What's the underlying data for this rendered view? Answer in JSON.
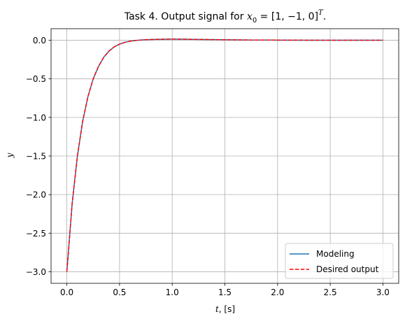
{
  "chart_data": {
    "type": "line",
    "title": {
      "prefix": "Task 4. Output signal for ",
      "var": "x",
      "var_sub": "0",
      "eq": " = [1, −1, 0]",
      "sup": "T",
      "suffix": "."
    },
    "xlabel": {
      "var": "t",
      "rest": ", [s]"
    },
    "ylabel": "y",
    "xlim": [
      -0.15,
      3.15
    ],
    "ylim": [
      -3.15,
      0.15
    ],
    "xticks": [
      0.0,
      0.5,
      1.0,
      1.5,
      2.0,
      2.5,
      3.0
    ],
    "xtick_labels": [
      "0.0",
      "0.5",
      "1.0",
      "1.5",
      "2.0",
      "2.5",
      "3.0"
    ],
    "yticks": [
      0.0,
      -0.5,
      -1.0,
      -1.5,
      -2.0,
      -2.5,
      -3.0
    ],
    "ytick_labels": [
      "0.0",
      "−0.5",
      "−1.0",
      "−1.5",
      "−2.0",
      "−2.5",
      "−3.0"
    ],
    "grid": true,
    "legend_position": "lower-right",
    "x": [
      0.0,
      0.05,
      0.1,
      0.15,
      0.2,
      0.25,
      0.3,
      0.35,
      0.4,
      0.45,
      0.5,
      0.55,
      0.6,
      0.65,
      0.7,
      0.75,
      0.8,
      0.85,
      0.9,
      0.95,
      1.0,
      1.1,
      1.2,
      1.3,
      1.4,
      1.5,
      1.75,
      2.0,
      2.25,
      2.5,
      2.75,
      3.0
    ],
    "series": [
      {
        "name": "Modeling",
        "color": "#1f77b4",
        "style": "solid",
        "values": [
          -3.0,
          -2.12,
          -1.5,
          -1.05,
          -0.73,
          -0.5,
          -0.34,
          -0.22,
          -0.14,
          -0.085,
          -0.05,
          -0.027,
          -0.012,
          -0.003,
          0.003,
          0.007,
          0.01,
          0.012,
          0.013,
          0.014,
          0.015,
          0.014,
          0.012,
          0.01,
          0.008,
          0.006,
          0.003,
          0.002,
          0.001,
          0.0,
          0.0,
          0.0
        ]
      },
      {
        "name": "Desired output",
        "color": "#ff0000",
        "style": "dashed",
        "values": [
          -3.0,
          -2.12,
          -1.5,
          -1.05,
          -0.73,
          -0.5,
          -0.34,
          -0.22,
          -0.14,
          -0.085,
          -0.05,
          -0.027,
          -0.012,
          -0.003,
          0.003,
          0.007,
          0.01,
          0.012,
          0.013,
          0.014,
          0.015,
          0.014,
          0.012,
          0.01,
          0.008,
          0.006,
          0.003,
          0.002,
          0.001,
          0.0,
          0.0,
          0.0
        ]
      }
    ]
  }
}
